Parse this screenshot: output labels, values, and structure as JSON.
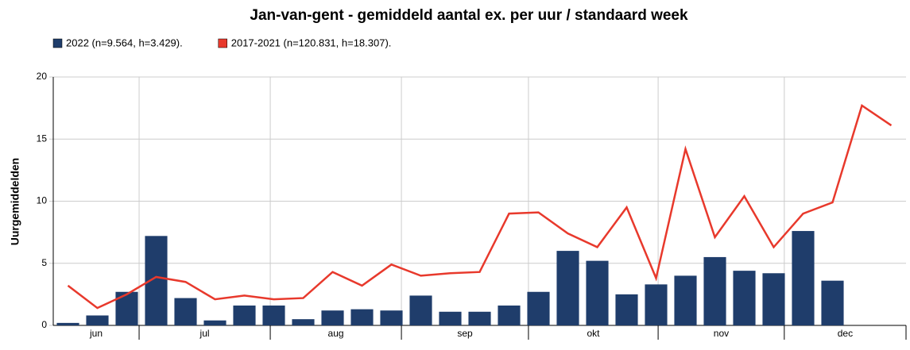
{
  "chart_data": {
    "type": "bar",
    "title": "Jan-van-gent - gemiddeld aantal ex. per uur / standaard week",
    "ylabel": "Uurgemiddelden",
    "categories": [
      null,
      null,
      null,
      null,
      null,
      null,
      null,
      null,
      null,
      null,
      null,
      null,
      null,
      null,
      null,
      null,
      null,
      null,
      null,
      null,
      null,
      null,
      null,
      null,
      null,
      null,
      null,
      null,
      null
    ],
    "series": [
      {
        "name": "2022 (n=9.564, h=3.429).",
        "type": "bar",
        "color": "#1f3d6b",
        "values": [
          0.2,
          0.8,
          2.7,
          7.2,
          2.2,
          0.4,
          1.6,
          1.6,
          0.5,
          1.2,
          1.3,
          1.2,
          2.4,
          1.1,
          1.1,
          1.6,
          2.7,
          6.0,
          5.2,
          2.5,
          3.3,
          4.0,
          5.5,
          4.4,
          4.2,
          7.6,
          3.6,
          null,
          null
        ]
      },
      {
        "name": "2017-2021 (n=120.831, h=18.307).",
        "type": "line",
        "color": "#e8392c",
        "values": [
          3.2,
          1.4,
          2.5,
          3.9,
          3.5,
          2.1,
          2.4,
          2.1,
          2.2,
          4.3,
          3.2,
          4.9,
          4.0,
          4.2,
          4.3,
          9.0,
          9.1,
          7.4,
          6.3,
          9.5,
          3.8,
          14.2,
          7.1,
          10.4,
          6.3,
          9.0,
          9.9,
          17.7,
          16.1
        ]
      }
    ],
    "x_groups": [
      {
        "label": "jun",
        "from": 0,
        "to": 2.92
      },
      {
        "label": "jul",
        "from": 2.92,
        "to": 7.38
      },
      {
        "label": "aug",
        "from": 7.38,
        "to": 11.84
      },
      {
        "label": "sep",
        "from": 11.84,
        "to": 16.16
      },
      {
        "label": "okt",
        "from": 16.16,
        "to": 20.57
      },
      {
        "label": "nov",
        "from": 20.57,
        "to": 24.86
      },
      {
        "label": "dec",
        "from": 24.86,
        "to": 29
      }
    ],
    "ylim": [
      0,
      20
    ],
    "yticks": [
      0,
      5,
      10,
      15,
      20
    ],
    "grid": true
  }
}
